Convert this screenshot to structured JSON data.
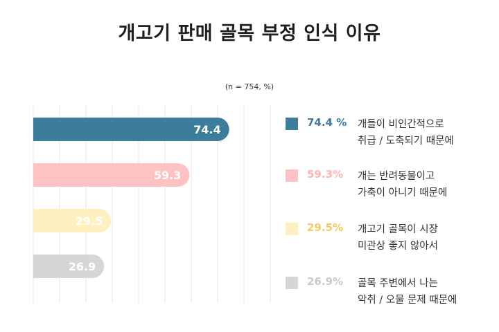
{
  "title": "개고기 판매 골목 부정 인식 이유",
  "note": "(n = 754, %)",
  "chart_data": {
    "type": "bar",
    "orientation": "horizontal",
    "title": "개고기 판매 골목 부정 인식 이유",
    "note": "(n = 754, %)",
    "categories": [
      "개들이 비인간적으로\n취급 / 도축되기 때문에",
      "개는 반려동물이고\n가축이 아니기 때문에",
      "개고기 골목이 시장\n미관상 좋지 않아서",
      "골목 주변에서 나는\n악취 / 오물 문제 때문에"
    ],
    "values": [
      74.4,
      59.3,
      29.5,
      26.9
    ],
    "value_labels": [
      "74.4",
      "59.3",
      "29.5",
      "26.9"
    ],
    "legend_values": [
      "74.4 %",
      "59.3%",
      "29.5%",
      "26.9%"
    ],
    "colors": [
      "#3d7d9b",
      "#ffc2c2",
      "#fff0bf",
      "#d6d6d6"
    ],
    "pct_colors": [
      "#3d7d9b",
      "#ffb3b3",
      "#f2cc5c",
      "#c9c9c9"
    ],
    "label_colors": [
      "#ffffff",
      "#ffffff",
      "#ffffff",
      "#ffffff"
    ],
    "xlim": [
      0,
      90
    ],
    "grid": true,
    "legend_position": "right"
  }
}
